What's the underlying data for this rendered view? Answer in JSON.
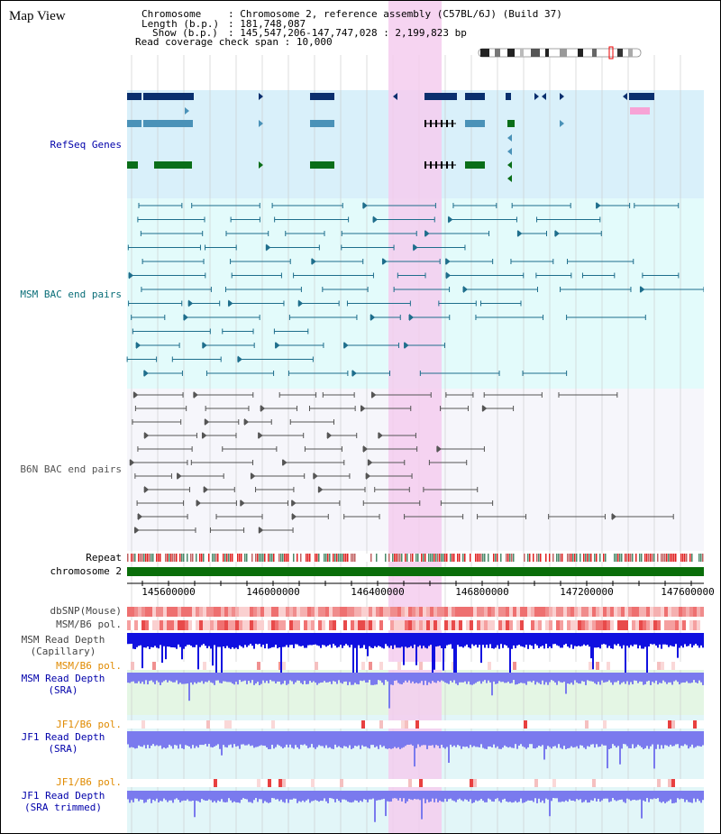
{
  "view_title": "Map View",
  "info": {
    "chromosome_label": "Chromosome",
    "chromosome_value": "Chromosome 2, reference assembly (C57BL/6J) (Build 37)",
    "length_label": "Length (b.p.)",
    "length_value": "181,748,087",
    "show_label": "Show (b.p.)",
    "show_value": "145,547,206-147,747,028 : 2,199,823 bp",
    "coverage_label": "Read coverage check span",
    "coverage_value": "10,000",
    "separator": ":"
  },
  "tracks": {
    "refseq": "RefSeq Genes",
    "msm_bac": "MSM BAC end pairs",
    "b6n_bac": "B6N BAC end pairs",
    "repeat": "Repeat",
    "chromosome": "chromosome 2",
    "dbsnp": "dbSNP(Mouse)",
    "msm_b6_pol": "MSM/B6 pol.",
    "msm_depth_cap_1": "MSM Read Depth",
    "msm_depth_cap_2": "(Capillary)",
    "msm_b6_pol_2": "MSM/B6 pol.",
    "msm_depth_sra_1": "MSM Read Depth",
    "msm_depth_sra_2": "(SRA)",
    "jf1_b6_pol": "JF1/B6 pol.",
    "jf1_depth_sra_1": "JF1 Read Depth",
    "jf1_depth_sra_2": "(SRA)",
    "jf1_b6_pol_2": "JF1/B6 pol.",
    "jf1_depth_trim_1": "JF1 Read Depth",
    "jf1_depth_trim_2": "(SRA trimmed)"
  },
  "axis": {
    "ticks": [
      "145600000",
      "146000000",
      "146400000",
      "146800000",
      "147200000",
      "147600000"
    ]
  },
  "colors": {
    "refseq_blue": "#0a2f6e",
    "refseq_mid": "#4a92b8",
    "refseq_green": "#0a6e18",
    "msm_line": "#1e6e8c",
    "b6n_line": "#555555",
    "highlight": "#f5cdef",
    "chromosome_bar": "#0a6e0a",
    "label_blue": "#0000aa",
    "label_teal": "#0a6e78",
    "label_orange": "#e08a00",
    "depth_dark": "#1010e0",
    "depth_light": "#7a7aee"
  }
}
